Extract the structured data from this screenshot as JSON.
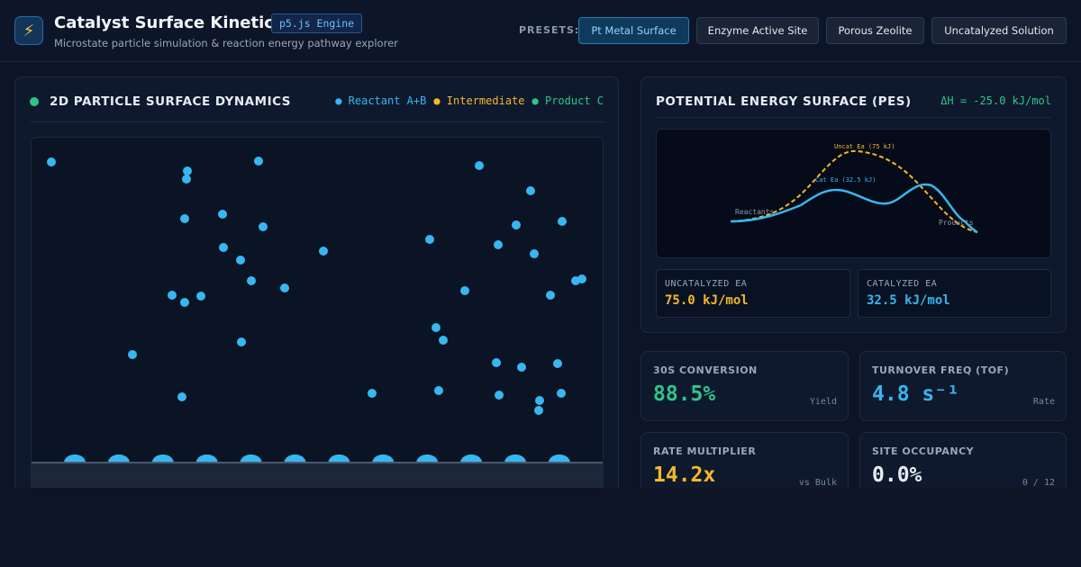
{
  "header": {
    "title": "Catalyst Surface Kinetics",
    "engine_badge": "p5.js Engine",
    "subtitle": "Microstate particle simulation & reaction energy pathway explorer",
    "logo_icon": "lightning-icon",
    "presets_label": "PRESETS:",
    "presets": [
      {
        "label": "Pt Metal Surface",
        "active": true
      },
      {
        "label": "Enzyme Active Site",
        "active": false
      },
      {
        "label": "Porous Zeolite",
        "active": false
      },
      {
        "label": "Uncatalyzed Solution",
        "active": false
      }
    ]
  },
  "simulation": {
    "title": "2D PARTICLE SURFACE DYNAMICS",
    "legend": [
      "● Reactant A+B",
      "● Intermediate",
      "● Product C"
    ],
    "colors": {
      "reactant": "#38b6f0",
      "intermediate": "#f5b82a",
      "product": "#2fc48a"
    },
    "site_count": 12
  },
  "pes": {
    "title": "POTENTIAL ENERGY SURFACE (PES)",
    "delta_h": "ΔH = -25.0 kJ/mol",
    "labels": {
      "uncat": "Uncat Ea (75 kJ)",
      "cat": "Cat Ea (32.5 kJ)",
      "reactants": "Reactants",
      "products": "Products"
    },
    "uncatalyzed": {
      "label": "UNCATALYZED EA",
      "value": "75.0 kJ/mol",
      "color": "#f5b82a"
    },
    "catalyzed": {
      "label": "CATALYZED EA",
      "value": "32.5 kJ/mol",
      "color": "#38b6f0"
    }
  },
  "stats": [
    {
      "label": "30S CONVERSION",
      "value": "88.5%",
      "sub": "Yield",
      "color": "#2fc48a"
    },
    {
      "label": "TURNOVER FREQ (TOF)",
      "value": "4.8 s⁻¹",
      "sub": "Rate",
      "color": "#38b6f0"
    },
    {
      "label": "RATE MULTIPLIER",
      "value": "14.2x",
      "sub": "vs Bulk",
      "color": "#f5b82a"
    },
    {
      "label": "SITE OCCUPANCY",
      "value": "0.0%",
      "sub": "0 / 12",
      "color": "#e6ebf3"
    }
  ]
}
